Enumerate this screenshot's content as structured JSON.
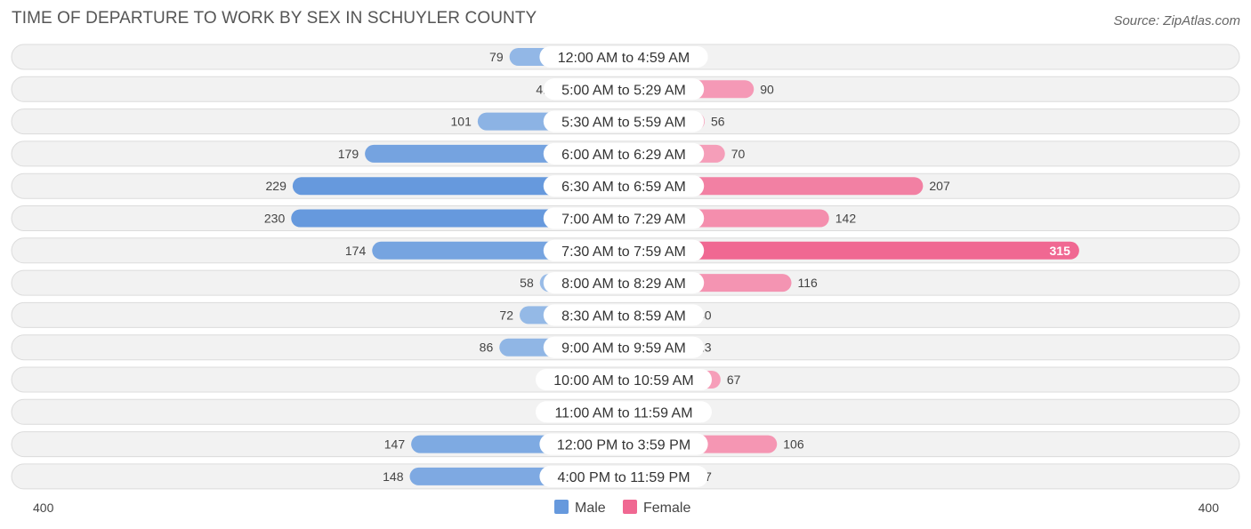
{
  "header": {
    "title": "TIME OF DEPARTURE TO WORK BY SEX IN SCHUYLER COUNTY",
    "source": "Source: ZipAtlas.com"
  },
  "colors": {
    "male_strong": "#6699dd",
    "male_light": "#a9c7ea",
    "female_strong": "#f06892",
    "female_light": "#f7adc4"
  },
  "chart_data": {
    "type": "bar",
    "orientation": "horizontal-diverging",
    "title": "TIME OF DEPARTURE TO WORK BY SEX IN SCHUYLER COUNTY",
    "categories": [
      "12:00 AM to 4:59 AM",
      "5:00 AM to 5:29 AM",
      "5:30 AM to 5:59 AM",
      "6:00 AM to 6:29 AM",
      "6:30 AM to 6:59 AM",
      "7:00 AM to 7:29 AM",
      "7:30 AM to 7:59 AM",
      "8:00 AM to 8:29 AM",
      "8:30 AM to 8:59 AM",
      "9:00 AM to 9:59 AM",
      "10:00 AM to 10:59 AM",
      "11:00 AM to 11:59 AM",
      "12:00 PM to 3:59 PM",
      "4:00 PM to 11:59 PM"
    ],
    "series": [
      {
        "name": "Male",
        "values": [
          79,
          41,
          101,
          179,
          229,
          230,
          174,
          58,
          72,
          86,
          0,
          0,
          147,
          148
        ]
      },
      {
        "name": "Female",
        "values": [
          6,
          90,
          56,
          70,
          207,
          142,
          315,
          116,
          40,
          13,
          67,
          0,
          106,
          47
        ]
      }
    ],
    "axis": {
      "left_label": "400",
      "right_label": "400",
      "max": 400
    },
    "legend": {
      "position": "bottom-center"
    }
  }
}
